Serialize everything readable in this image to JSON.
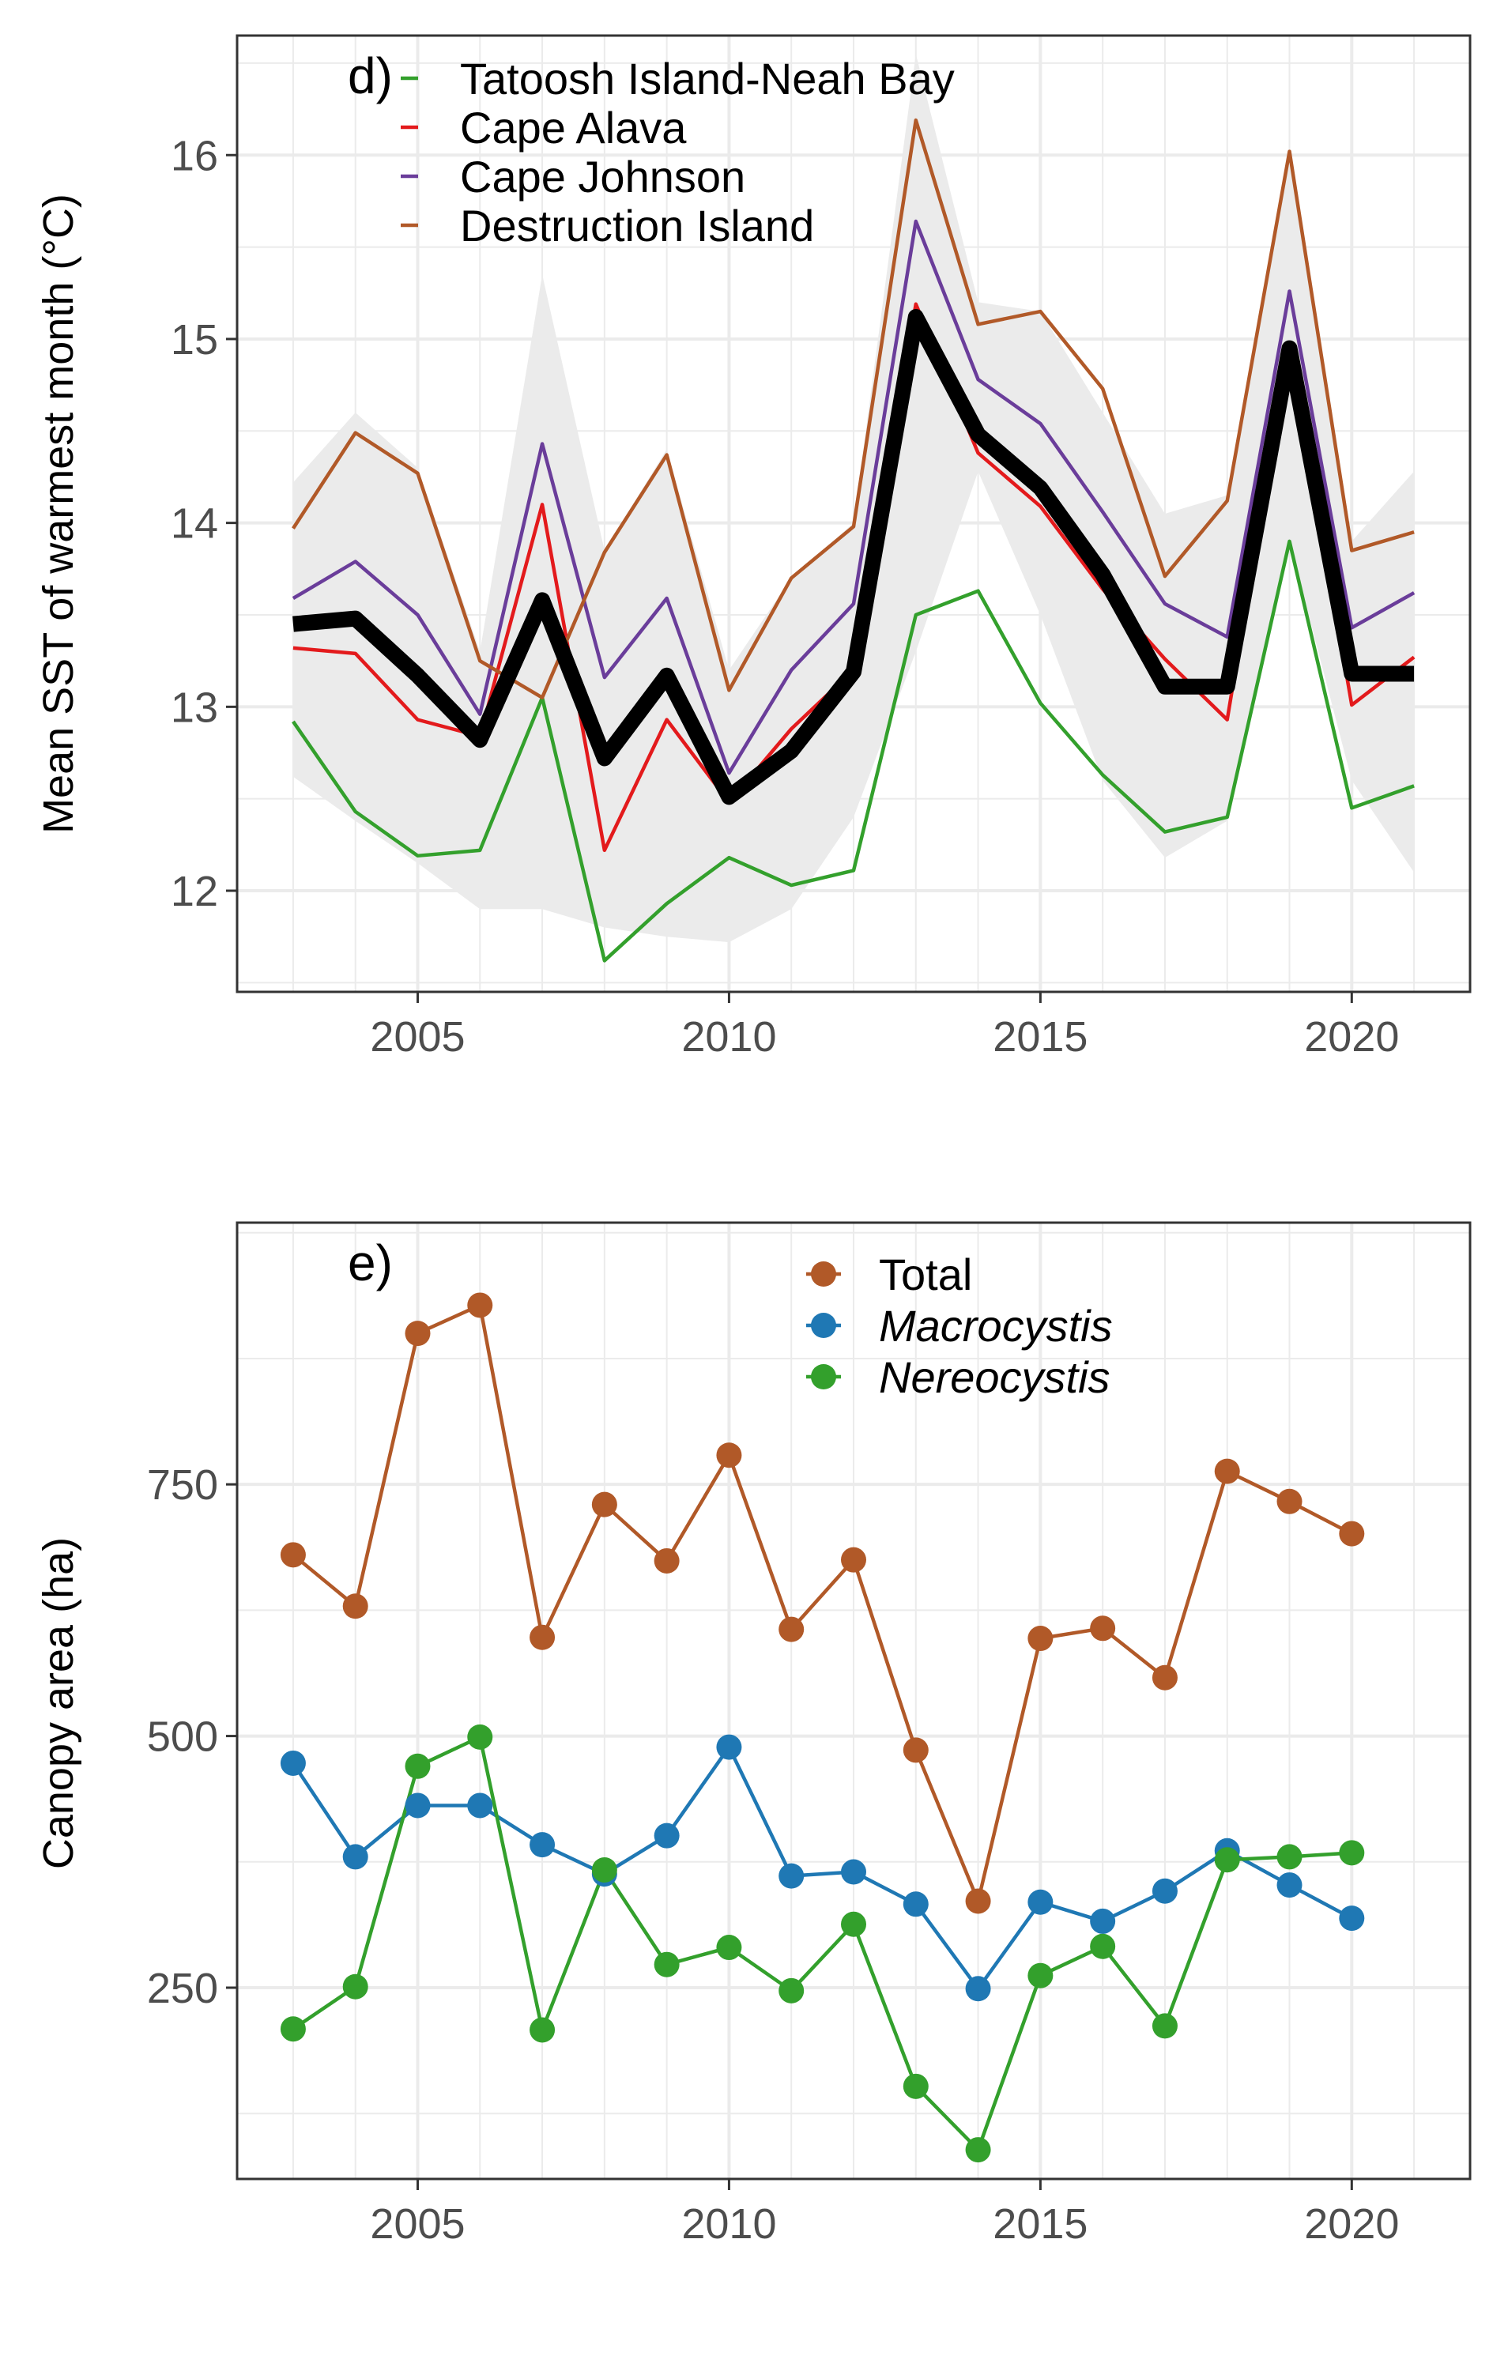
{
  "chart_data": [
    {
      "type": "line",
      "panel_tag": "d)",
      "ylabel": "Mean SST of warmest month (°C)",
      "xlabel": "",
      "xlim": [
        2002.1,
        2021.9
      ],
      "ylim": [
        11.45,
        16.65
      ],
      "x_ticks": [
        2005,
        2010,
        2015,
        2020
      ],
      "y_ticks": [
        12,
        13,
        14,
        15,
        16
      ],
      "grid": true,
      "legend_position": "top-left",
      "x": [
        2003,
        2004,
        2005,
        2006,
        2007,
        2008,
        2009,
        2010,
        2011,
        2012,
        2013,
        2014,
        2015,
        2016,
        2017,
        2018,
        2019,
        2020,
        2021
      ],
      "series": [
        {
          "name": "Tatoosh Island-Neah Bay",
          "color": "#33a02c",
          "values": [
            12.92,
            12.43,
            12.19,
            12.22,
            13.05,
            11.62,
            11.93,
            12.18,
            12.03,
            12.11,
            13.5,
            13.63,
            13.02,
            12.63,
            12.32,
            12.4,
            13.9,
            12.45,
            12.57
          ]
        },
        {
          "name": "Cape Alava",
          "color": "#e31a1c",
          "values": [
            13.32,
            13.29,
            12.93,
            12.84,
            14.1,
            12.22,
            12.93,
            12.48,
            12.88,
            13.2,
            15.19,
            14.38,
            14.09,
            13.64,
            13.26,
            12.93,
            14.97,
            13.01,
            13.27
          ]
        },
        {
          "name": "Cape Johnson",
          "color": "#6a3d9a",
          "values": [
            13.59,
            13.79,
            13.5,
            12.96,
            14.43,
            13.16,
            13.59,
            12.64,
            13.2,
            13.56,
            15.64,
            14.78,
            14.54,
            14.06,
            13.56,
            13.38,
            15.26,
            13.43,
            13.62
          ]
        },
        {
          "name": "Destruction Island",
          "color": "#b15928",
          "values": [
            13.97,
            14.49,
            14.27,
            13.25,
            13.05,
            13.84,
            14.37,
            13.09,
            13.7,
            13.98,
            16.19,
            15.08,
            15.15,
            14.73,
            13.71,
            14.12,
            16.02,
            13.85,
            13.95
          ]
        }
      ],
      "mean_series": {
        "color": "#000000",
        "values": [
          13.45,
          13.48,
          13.17,
          12.82,
          13.58,
          12.72,
          13.17,
          12.51,
          12.76,
          13.19,
          15.12,
          14.48,
          14.19,
          13.72,
          13.11,
          13.11,
          14.95,
          13.18,
          13.18
        ]
      },
      "ribbon": {
        "color": "#ebebeb",
        "lower": [
          12.62,
          12.38,
          12.15,
          11.9,
          11.9,
          11.8,
          11.75,
          11.72,
          11.9,
          12.4,
          13.3,
          14.28,
          13.5,
          12.6,
          12.18,
          12.38,
          13.9,
          12.6,
          12.1
        ],
        "upper": [
          14.22,
          14.6,
          14.3,
          13.3,
          15.35,
          13.85,
          14.4,
          13.2,
          13.7,
          14.0,
          16.55,
          15.2,
          15.15,
          14.6,
          14.05,
          14.15,
          16.0,
          13.9,
          14.28
        ]
      }
    },
    {
      "type": "line",
      "panel_tag": "e)",
      "ylabel": "Canopy area (ha)",
      "xlabel": "",
      "xlim": [
        2002.1,
        2021.9
      ],
      "ylim": [
        60,
        1010
      ],
      "x_ticks": [
        2005,
        2010,
        2015,
        2020
      ],
      "y_ticks": [
        250,
        500,
        750
      ],
      "grid": true,
      "legend_position": "top-center",
      "markers": true,
      "x": [
        2003,
        2004,
        2005,
        2006,
        2007,
        2008,
        2009,
        2010,
        2011,
        2012,
        2013,
        2014,
        2015,
        2016,
        2017,
        2018,
        2019,
        2020
      ],
      "series": [
        {
          "name": "Total",
          "italic": false,
          "color": "#b15928",
          "values": [
            680,
            629,
            900,
            928,
            598,
            730,
            674,
            779,
            606,
            675,
            486,
            336,
            597,
            607,
            558,
            763,
            733,
            701
          ]
        },
        {
          "name": "Macrocystis",
          "italic": true,
          "color": "#1f78b4",
          "values": [
            473,
            380,
            431,
            431,
            392,
            363,
            401,
            489,
            361,
            365,
            333,
            249,
            335,
            316,
            346,
            386,
            352,
            319
          ]
        },
        {
          "name": "Nereocystis",
          "italic": true,
          "color": "#33a02c",
          "values": [
            209,
            251,
            470,
            499,
            208,
            367,
            273,
            290,
            247,
            313,
            152,
            89,
            262,
            291,
            212,
            377,
            380,
            384
          ]
        }
      ]
    }
  ]
}
